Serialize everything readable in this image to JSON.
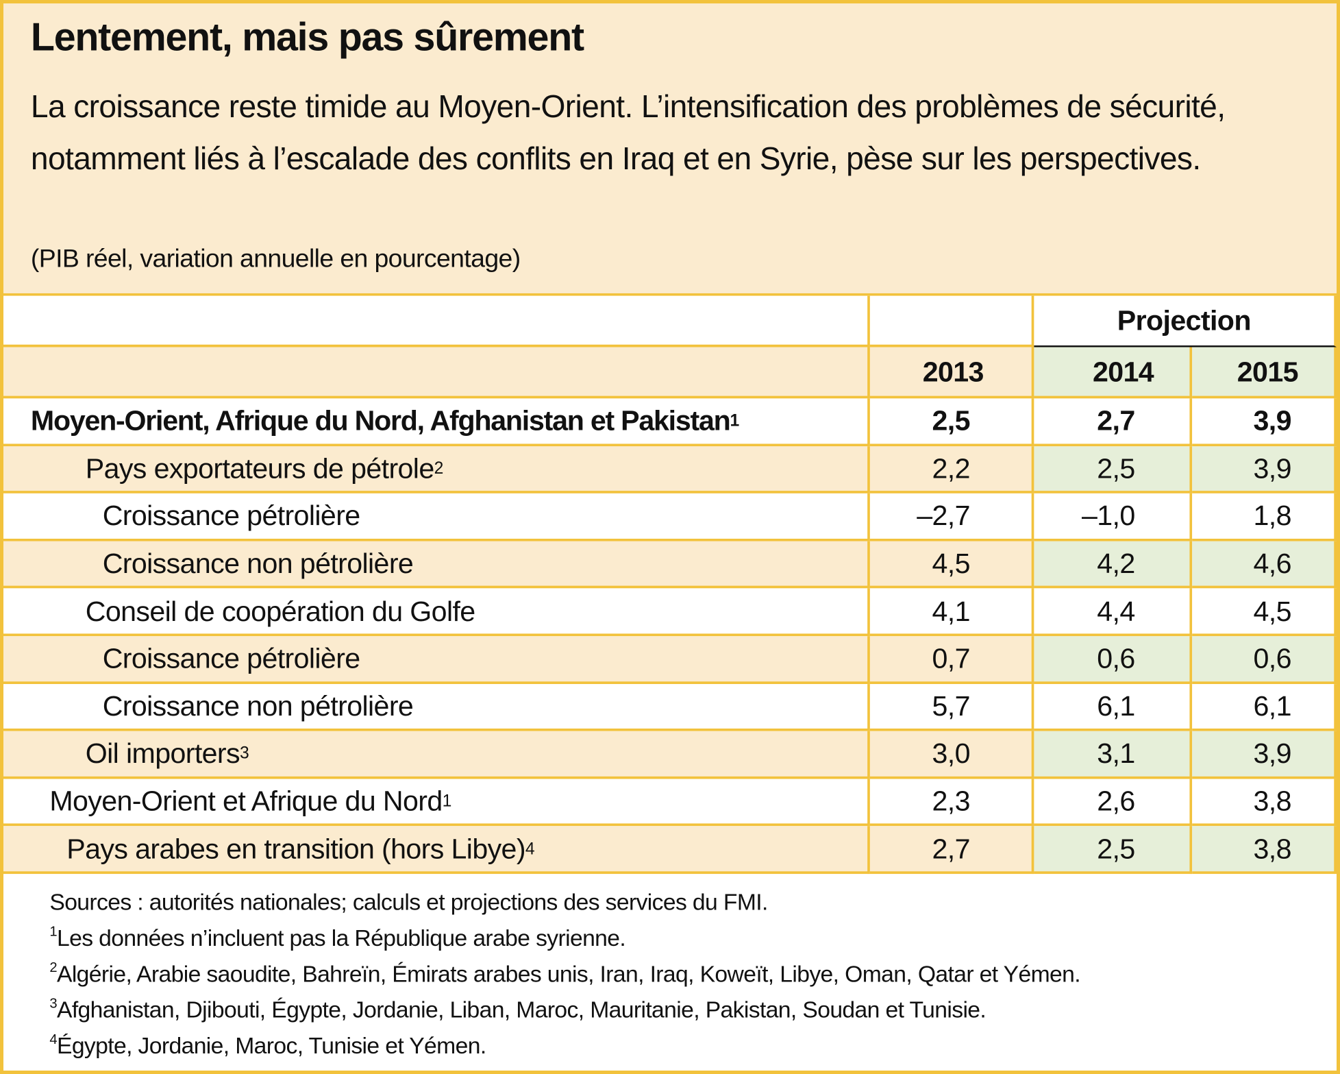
{
  "header": {
    "title": "Lentement, mais pas sûrement",
    "subtitle": "La croissance reste timide au Moyen-Orient. L’intensification des problèmes de sécurité, notamment liés à l’escalade des conflits en Iraq et en Syrie, pèse sur les perspectives.",
    "unit_note": "(PIB réel, variation annuelle en pourcentage)"
  },
  "table": {
    "group_header": "Projection",
    "columns": [
      "2013",
      "2014",
      "2015"
    ],
    "rows": [
      {
        "label": "Moyen-Orient, Afrique du Nord, Afghanistan et Pakistan",
        "note": "1",
        "values": [
          "2,5",
          "2,7",
          "3,9"
        ]
      },
      {
        "label": "Pays exportateurs de pétrole",
        "note": "2",
        "values": [
          "2,2",
          "2,5",
          "3,9"
        ]
      },
      {
        "label": "Croissance pétrolière",
        "values": [
          "–2,7",
          "–1,0",
          "1,8"
        ]
      },
      {
        "label": "Croissance non pétrolière",
        "values": [
          "4,5",
          "4,2",
          "4,6"
        ]
      },
      {
        "label": "Conseil de coopération du Golfe",
        "values": [
          "4,1",
          "4,4",
          "4,5"
        ]
      },
      {
        "label": "Croissance pétrolière",
        "values": [
          "0,7",
          "0,6",
          "0,6"
        ]
      },
      {
        "label": "Croissance non pétrolière",
        "values": [
          "5,7",
          "6,1",
          "6,1"
        ]
      },
      {
        "label": "Oil importers",
        "note": "3",
        "values": [
          "3,0",
          "3,1",
          "3,9"
        ]
      },
      {
        "label": "Moyen-Orient et Afrique du Nord",
        "note": "1",
        "values": [
          "2,3",
          "2,6",
          "3,8"
        ]
      },
      {
        "label": "Pays arabes en transition (hors Libye)",
        "note": "4",
        "values": [
          "2,7",
          "2,5",
          "3,8"
        ]
      }
    ]
  },
  "footer": {
    "source": "Sources : autorités nationales; calculs et projections des services du FMI.",
    "notes": [
      {
        "mark": "1",
        "text": "Les données n’incluent pas la République arabe syrienne."
      },
      {
        "mark": "2",
        "text": "Algérie, Arabie saoudite, Bahreïn, Émirats arabes unis, Iran, Iraq, Koweït, Libye, Oman, Qatar et Yémen."
      },
      {
        "mark": "3",
        "text": "Afghanistan, Djibouti, Égypte, Jordanie, Liban, Maroc, Mauritanie, Pakistan, Soudan et Tunisie."
      },
      {
        "mark": "4",
        "text": "Égypte, Jordanie, Maroc, Tunisie et Yémen."
      }
    ]
  }
}
